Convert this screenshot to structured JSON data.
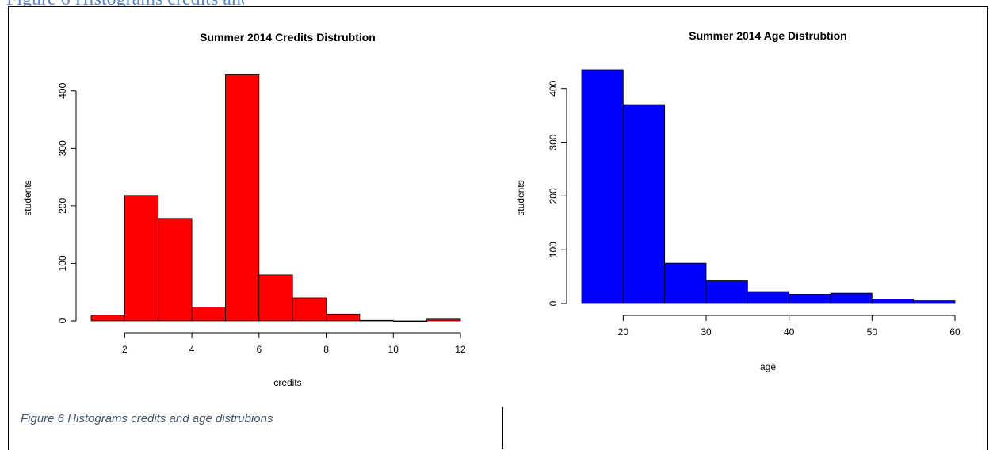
{
  "caption": "Figure 6 Histograms credits and age distrubions",
  "chart_data": [
    {
      "type": "bar",
      "title": "Summer 2014 Credits Distrubtion",
      "xlabel": "credits",
      "ylabel": "students",
      "bar_color": "#ff0000",
      "bin_edges": [
        1,
        2,
        3,
        4,
        5,
        6,
        7,
        8,
        9,
        10,
        11,
        12
      ],
      "values": [
        10,
        218,
        178,
        24,
        428,
        80,
        40,
        12,
        1,
        0,
        3
      ],
      "xlim": [
        1,
        12
      ],
      "ylim": [
        0,
        430
      ],
      "x_ticks": [
        2,
        4,
        6,
        8,
        10,
        12
      ],
      "y_ticks": [
        0,
        100,
        200,
        300,
        400
      ]
    },
    {
      "type": "bar",
      "title": "Summer 2014 Age Distrubtion",
      "xlabel": "age",
      "ylabel": "students",
      "bar_color": "#0000ff",
      "bin_edges": [
        15,
        20,
        25,
        30,
        35,
        40,
        45,
        50,
        55,
        60
      ],
      "values": [
        435,
        370,
        75,
        42,
        22,
        17,
        19,
        8,
        5
      ],
      "xlim": [
        15,
        60
      ],
      "ylim": [
        0,
        435
      ],
      "x_ticks": [
        20,
        30,
        40,
        50,
        60
      ],
      "y_ticks": [
        0,
        100,
        200,
        300,
        400
      ]
    }
  ]
}
